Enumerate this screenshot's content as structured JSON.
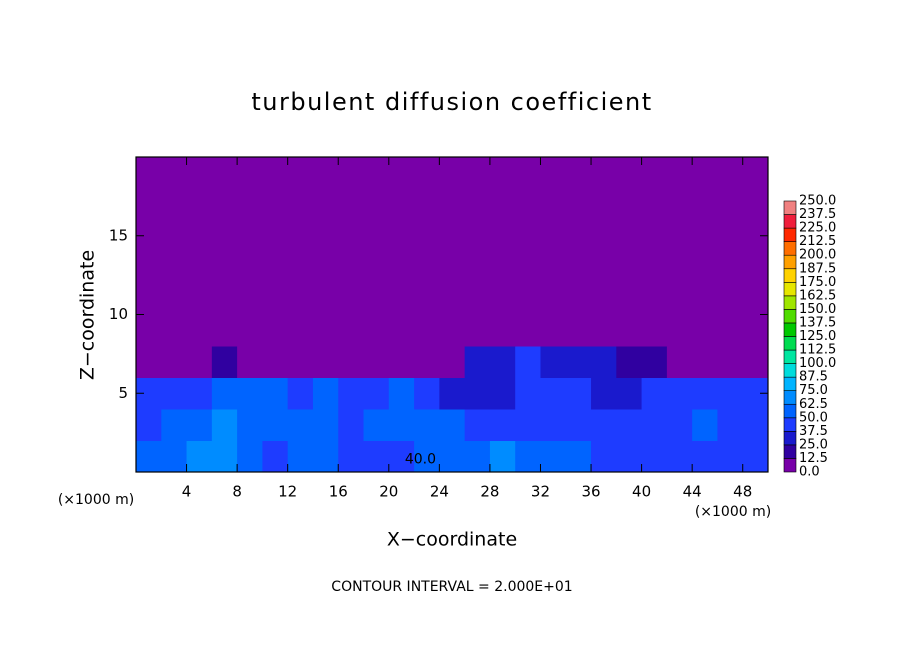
{
  "chart_data": {
    "type": "heatmap",
    "title": "turbulent diffusion coefficient",
    "x_label": "X−coordinate",
    "y_label": "Z−coordinate",
    "x_unit": "(×1000 m)",
    "y_unit": "(×1000 m)",
    "note": "CONTOUR INTERVAL = 2.000E+01",
    "xlim": [
      0,
      50
    ],
    "ylim": [
      0,
      20
    ],
    "xticks": [
      4,
      8,
      12,
      16,
      20,
      24,
      28,
      32,
      36,
      40,
      44,
      48
    ],
    "yticks": [
      5,
      10,
      15
    ],
    "annotations": [
      {
        "text": "40.0",
        "x": 22.5,
        "y": 0.8
      }
    ],
    "field": {
      "x_edges": [
        0,
        2,
        4,
        6,
        8,
        10,
        12,
        14,
        16,
        18,
        20,
        22,
        24,
        26,
        28,
        30,
        32,
        34,
        36,
        38,
        40,
        42,
        44,
        46,
        48,
        50
      ],
      "y_edges": [
        0,
        2,
        4,
        6,
        8,
        20
      ],
      "values": [
        [
          55,
          60,
          70,
          65,
          50,
          45,
          60,
          55,
          45,
          40,
          45,
          50,
          55,
          60,
          70,
          60,
          55,
          50,
          45,
          40,
          40,
          40,
          40,
          40,
          40
        ],
        [
          45,
          50,
          60,
          65,
          55,
          50,
          55,
          50,
          45,
          50,
          55,
          60,
          50,
          45,
          40,
          45,
          45,
          40,
          40,
          40,
          45,
          45,
          50,
          45,
          40
        ],
        [
          40,
          40,
          45,
          60,
          55,
          50,
          45,
          50,
          45,
          45,
          50,
          40,
          35,
          30,
          35,
          40,
          40,
          40,
          35,
          35,
          40,
          40,
          45,
          45,
          40
        ],
        [
          10,
          10,
          5,
          15,
          5,
          5,
          5,
          5,
          5,
          5,
          5,
          5,
          10,
          30,
          35,
          40,
          35,
          30,
          25,
          20,
          20,
          5,
          10,
          5,
          5
        ],
        [
          0,
          0,
          0,
          0,
          0,
          0,
          0,
          0,
          0,
          0,
          0,
          0,
          0,
          0,
          5,
          5,
          5,
          0,
          0,
          0,
          0,
          0,
          0,
          0,
          0
        ]
      ]
    },
    "colorbar": {
      "ticks": [
        {
          "value": 0,
          "label": "0.0"
        },
        12.5,
        25,
        37.5,
        50,
        62.5,
        75,
        87.5,
        100,
        112.5,
        125,
        137.5,
        150,
        162.5,
        175,
        187.5,
        200,
        212.5,
        225,
        237.5,
        250
      ],
      "tick_labels": [
        "0.0",
        "12.5",
        "25.0",
        "37.5",
        "50.0",
        "62.5",
        "75.0",
        "87.5",
        "100.0",
        "112.5",
        "125.0",
        "137.5",
        "150.0",
        "162.5",
        "175.0",
        "187.5",
        "200.0",
        "212.5",
        "225.0",
        "237.5",
        "250.0"
      ],
      "colors": [
        "#7800a8",
        "#3000a0",
        "#1a1acd",
        "#1e3cff",
        "#0064ff",
        "#008cff",
        "#00b4ff",
        "#00dcdc",
        "#00e6a0",
        "#00dc50",
        "#00c800",
        "#50dc00",
        "#a0e600",
        "#e6e600",
        "#ffd200",
        "#ffa000",
        "#ff6e00",
        "#ff2800",
        "#f01e3c",
        "#f08080"
      ]
    }
  }
}
